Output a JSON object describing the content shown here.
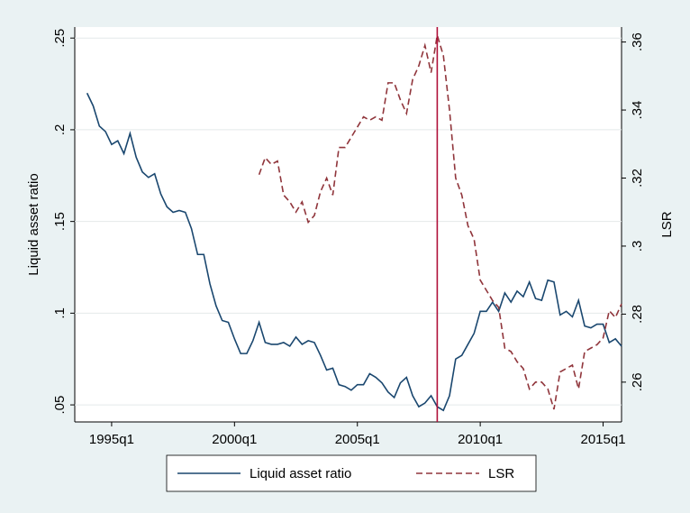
{
  "chart_data": {
    "type": "line",
    "x": [
      136,
      137,
      138,
      139,
      140,
      141,
      142,
      143,
      144,
      145,
      146,
      147,
      148,
      149,
      150,
      151,
      152,
      153,
      154,
      155,
      156,
      157,
      158,
      159,
      160,
      161,
      162,
      163,
      164,
      165,
      166,
      167,
      168,
      169,
      170,
      171,
      172,
      173,
      174,
      175,
      176,
      177,
      178,
      179,
      180,
      181,
      182,
      183,
      184,
      185,
      186,
      187,
      188,
      189,
      190,
      191,
      192,
      193,
      194,
      195,
      196,
      197,
      198,
      199,
      200,
      201,
      202,
      203,
      204,
      205,
      206,
      207,
      208,
      209,
      210,
      211,
      212,
      213,
      214,
      215,
      216,
      217,
      218,
      219,
      220,
      221,
      222,
      223
    ],
    "series": [
      {
        "name": "Liquid asset ratio",
        "color": "#1a476f",
        "dash": false,
        "values": [
          0.22,
          0.213,
          0.202,
          0.199,
          0.192,
          0.194,
          0.187,
          0.198,
          0.185,
          0.177,
          0.174,
          0.176,
          0.165,
          0.158,
          0.155,
          0.156,
          0.155,
          0.146,
          0.132,
          0.132,
          0.116,
          0.104,
          0.096,
          0.095,
          0.086,
          0.078,
          0.078,
          0.085,
          0.095,
          0.084,
          0.083,
          0.083,
          0.084,
          0.082,
          0.087,
          0.083,
          0.085,
          0.084,
          0.077,
          0.069,
          0.07,
          0.061,
          0.06,
          0.058,
          0.061,
          0.061,
          0.067,
          0.065,
          0.062,
          0.057,
          0.054,
          0.062,
          0.065,
          0.055,
          0.049,
          0.051,
          0.055,
          0.049,
          0.047,
          0.055,
          0.075,
          0.077,
          0.083,
          0.089,
          0.101,
          0.101,
          0.106,
          0.101,
          0.111,
          0.106,
          0.112,
          0.109,
          0.117,
          0.108,
          0.107,
          0.118,
          0.117,
          0.099,
          0.101,
          0.098,
          0.107,
          0.093,
          0.092,
          0.094,
          0.094,
          0.084,
          0.086,
          0.082
        ]
      },
      {
        "name": "LSR",
        "color": "#90353b",
        "dash": true,
        "axis": "y2",
        "values": [
          null,
          null,
          null,
          null,
          null,
          null,
          null,
          null,
          null,
          null,
          null,
          null,
          null,
          null,
          null,
          null,
          null,
          null,
          null,
          null,
          null,
          null,
          null,
          null,
          null,
          null,
          null,
          null,
          0.321,
          0.326,
          0.324,
          0.325,
          0.315,
          0.313,
          0.31,
          0.313,
          0.307,
          0.309,
          0.316,
          0.32,
          0.315,
          0.329,
          0.329,
          0.332,
          0.335,
          0.338,
          0.337,
          0.338,
          0.337,
          0.348,
          0.348,
          0.343,
          0.339,
          0.349,
          0.353,
          0.359,
          0.351,
          0.362,
          0.356,
          0.34,
          0.32,
          0.315,
          0.306,
          0.302,
          0.29,
          0.287,
          0.284,
          0.282,
          0.27,
          0.269,
          0.266,
          0.264,
          0.258,
          0.26,
          0.26,
          0.258,
          0.252,
          0.263,
          0.264,
          0.265,
          0.258,
          0.269,
          0.27,
          0.271,
          0.273,
          0.281,
          0.279,
          0.283
        ]
      }
    ],
    "xlim": [
      134,
      223
    ],
    "xticks": [
      {
        "value": 140,
        "label": "1995q1"
      },
      {
        "value": 160,
        "label": "2000q1"
      },
      {
        "value": 180,
        "label": "2005q1"
      },
      {
        "value": 200,
        "label": "2010q1"
      },
      {
        "value": 220,
        "label": "2015q1"
      }
    ],
    "ylabel": "Liquid asset ratio",
    "ylim": [
      0.0407,
      0.256
    ],
    "yticks": [
      {
        "value": 0.05,
        "label": ".05"
      },
      {
        "value": 0.1,
        "label": ".1"
      },
      {
        "value": 0.15,
        "label": ".15"
      },
      {
        "value": 0.2,
        "label": ".2"
      },
      {
        "value": 0.25,
        "label": ".25"
      }
    ],
    "y2label": "LSR",
    "y2lim": [
      0.2483,
      0.3644
    ],
    "y2ticks": [
      {
        "value": 0.26,
        "label": ".26"
      },
      {
        "value": 0.28,
        "label": ".28"
      },
      {
        "value": 0.3,
        "label": ".3"
      },
      {
        "value": 0.32,
        "label": ".32"
      },
      {
        "value": 0.34,
        "label": ".34"
      },
      {
        "value": 0.36,
        "label": ".36"
      }
    ],
    "vline": {
      "value": 193,
      "color": "#b0103a"
    },
    "grid": true,
    "legend": "bottom"
  }
}
